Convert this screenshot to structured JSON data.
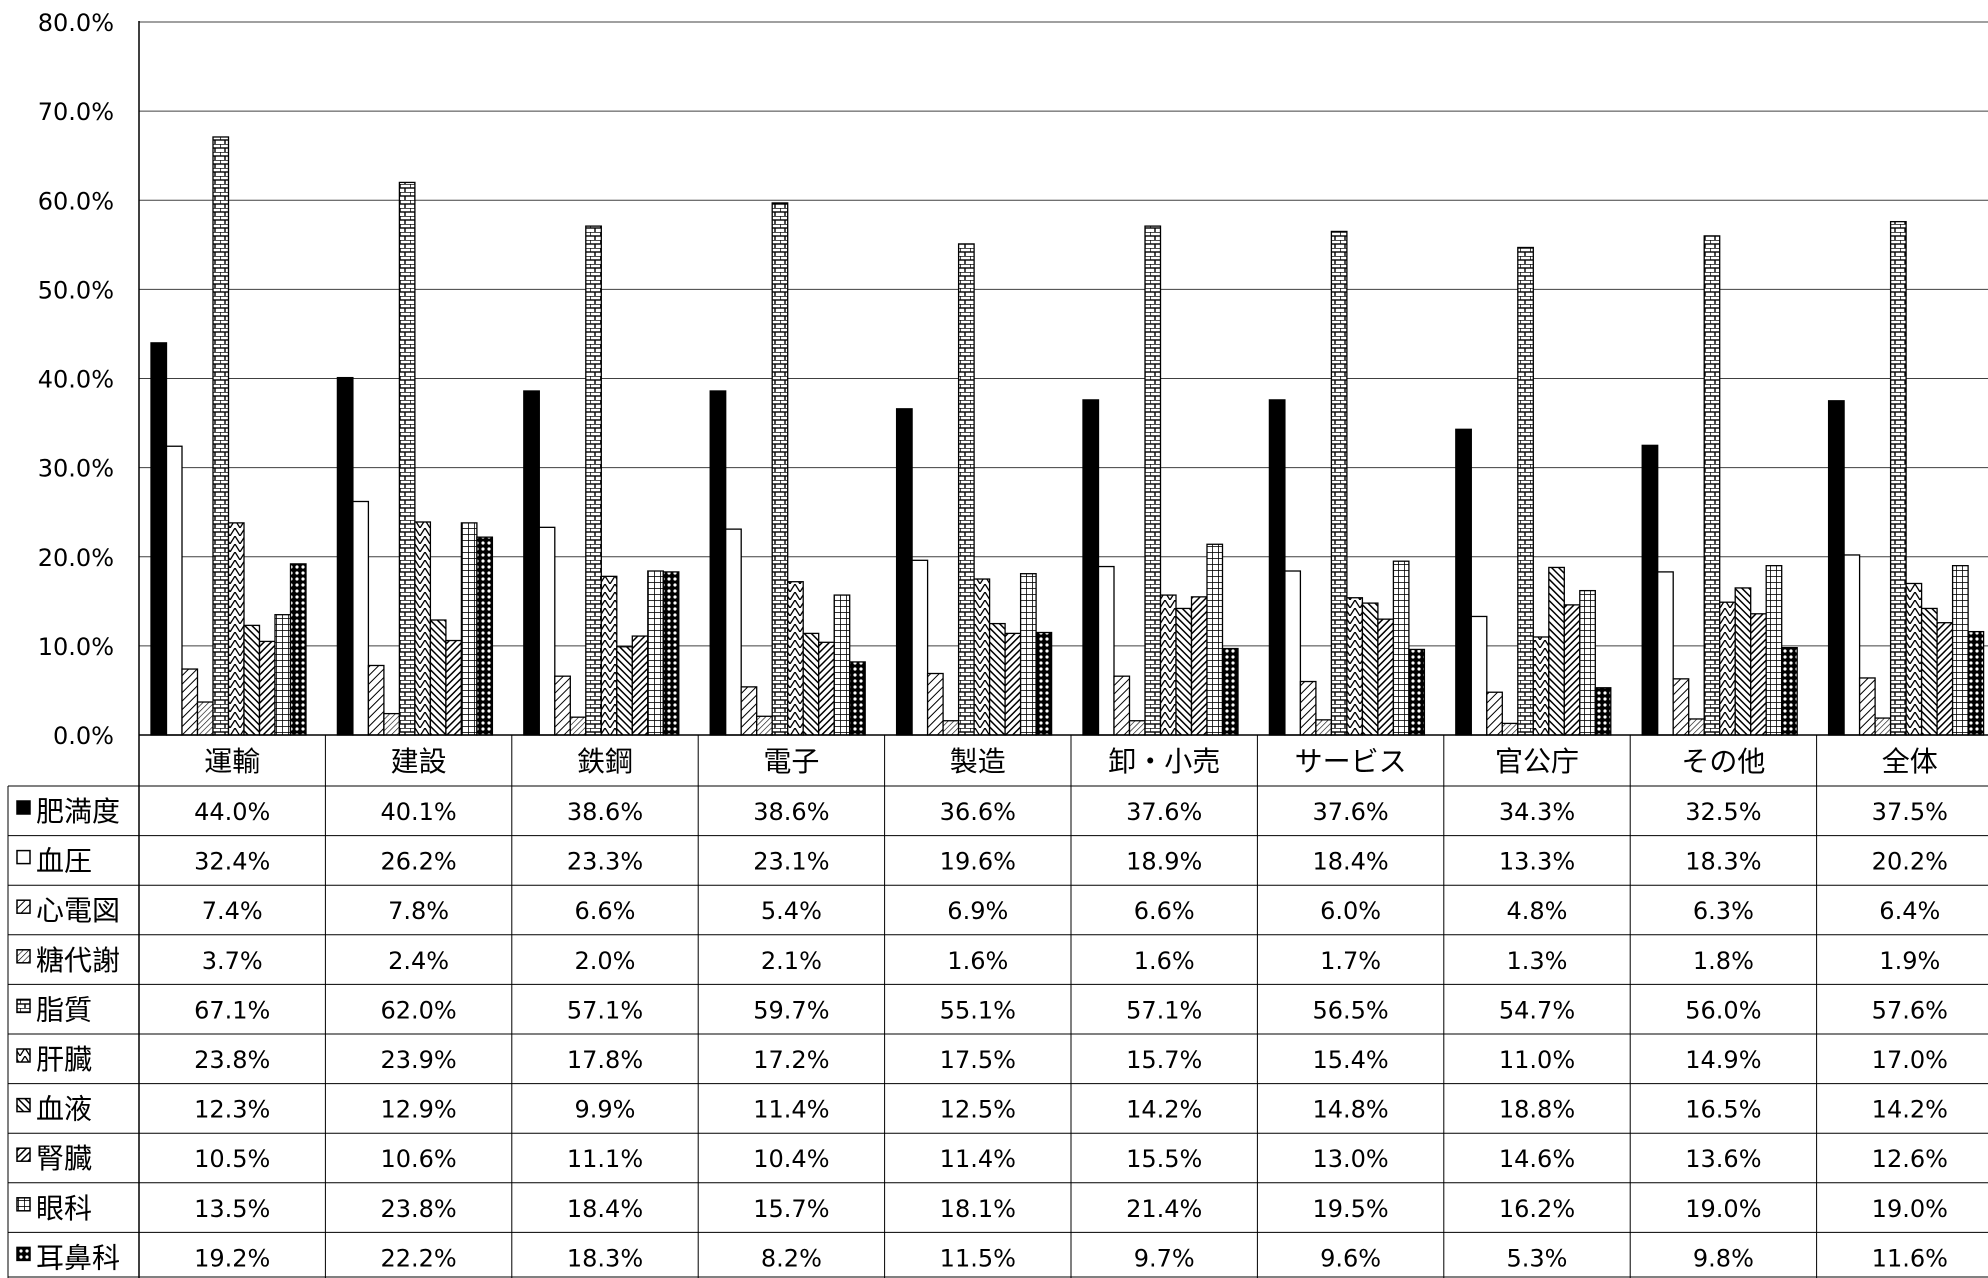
{
  "chart_data": {
    "type": "bar",
    "title": "",
    "xlabel": "",
    "ylabel": "",
    "ylim": [
      0,
      80
    ],
    "yticks": [
      "0.0%",
      "10.0%",
      "20.0%",
      "30.0%",
      "40.0%",
      "50.0%",
      "60.0%",
      "70.0%",
      "80.0%"
    ],
    "grid": true,
    "legend": "data-table-below",
    "categories": [
      "運輸",
      "建設",
      "鉄鋼",
      "電子",
      "製造",
      "卸・小売",
      "サービス",
      "官公庁",
      "その他",
      "全体"
    ],
    "series": [
      {
        "name": "肥満度",
        "pattern": "solid-black",
        "values": [
          44.0,
          40.1,
          38.6,
          38.6,
          36.6,
          37.6,
          37.6,
          34.3,
          32.5,
          37.5
        ],
        "labels": [
          "44.0%",
          "40.1%",
          "38.6%",
          "38.6%",
          "36.6%",
          "37.6%",
          "37.6%",
          "34.3%",
          "32.5%",
          "37.5%"
        ]
      },
      {
        "name": "血圧",
        "pattern": "white",
        "values": [
          32.4,
          26.2,
          23.3,
          23.1,
          19.6,
          18.9,
          18.4,
          13.3,
          18.3,
          20.2
        ],
        "labels": [
          "32.4%",
          "26.2%",
          "23.3%",
          "23.1%",
          "19.6%",
          "18.9%",
          "18.4%",
          "13.3%",
          "18.3%",
          "20.2%"
        ]
      },
      {
        "name": "心電図",
        "pattern": "diagonal-hatch",
        "values": [
          7.4,
          7.8,
          6.6,
          5.4,
          6.9,
          6.6,
          6.0,
          4.8,
          6.3,
          6.4
        ],
        "labels": [
          "7.4%",
          "7.8%",
          "6.6%",
          "5.4%",
          "6.9%",
          "6.6%",
          "6.0%",
          "4.8%",
          "6.3%",
          "6.4%"
        ]
      },
      {
        "name": "糖代謝",
        "pattern": "fine-diagonal",
        "values": [
          3.7,
          2.4,
          2.0,
          2.1,
          1.6,
          1.6,
          1.7,
          1.3,
          1.8,
          1.9
        ],
        "labels": [
          "3.7%",
          "2.4%",
          "2.0%",
          "2.1%",
          "1.6%",
          "1.6%",
          "1.7%",
          "1.3%",
          "1.8%",
          "1.9%"
        ]
      },
      {
        "name": "脂質",
        "pattern": "brick",
        "values": [
          67.1,
          62.0,
          57.1,
          59.7,
          55.1,
          57.1,
          56.5,
          54.7,
          56.0,
          57.6
        ],
        "labels": [
          "67.1%",
          "62.0%",
          "57.1%",
          "59.7%",
          "55.1%",
          "57.1%",
          "56.5%",
          "54.7%",
          "56.0%",
          "57.6%"
        ]
      },
      {
        "name": "肝臓",
        "pattern": "zigzag",
        "values": [
          23.8,
          23.9,
          17.8,
          17.2,
          17.5,
          15.7,
          15.4,
          11.0,
          14.9,
          17.0
        ],
        "labels": [
          "23.8%",
          "23.9%",
          "17.8%",
          "17.2%",
          "17.5%",
          "15.7%",
          "15.4%",
          "11.0%",
          "14.9%",
          "17.0%"
        ]
      },
      {
        "name": "血液",
        "pattern": "dense-diagonal",
        "values": [
          12.3,
          12.9,
          9.9,
          11.4,
          12.5,
          14.2,
          14.8,
          18.8,
          16.5,
          14.2
        ],
        "labels": [
          "12.3%",
          "12.9%",
          "9.9%",
          "11.4%",
          "12.5%",
          "14.2%",
          "14.8%",
          "18.8%",
          "16.5%",
          "14.2%"
        ]
      },
      {
        "name": "腎臓",
        "pattern": "dense-diagonal-2",
        "values": [
          10.5,
          10.6,
          11.1,
          10.4,
          11.4,
          15.5,
          13.0,
          14.6,
          13.6,
          12.6
        ],
        "labels": [
          "10.5%",
          "10.6%",
          "11.1%",
          "10.4%",
          "11.4%",
          "15.5%",
          "13.0%",
          "14.6%",
          "13.6%",
          "12.6%"
        ]
      },
      {
        "name": "眼科",
        "pattern": "grid",
        "values": [
          13.5,
          23.8,
          18.4,
          15.7,
          18.1,
          21.4,
          19.5,
          16.2,
          19.0,
          19.0
        ],
        "labels": [
          "13.5%",
          "23.8%",
          "18.4%",
          "15.7%",
          "18.1%",
          "21.4%",
          "19.5%",
          "16.2%",
          "19.0%",
          "19.0%"
        ]
      },
      {
        "name": "耳鼻科",
        "pattern": "dots",
        "values": [
          19.2,
          22.2,
          18.3,
          8.2,
          11.5,
          9.7,
          9.6,
          5.3,
          9.8,
          11.6
        ],
        "labels": [
          "19.2%",
          "22.2%",
          "18.3%",
          "8.2%",
          "11.5%",
          "9.7%",
          "9.6%",
          "5.3%",
          "9.8%",
          "11.6%"
        ]
      }
    ]
  },
  "colors": {
    "axis": "#000000",
    "grid": "#404040",
    "bar_fill": "#000000",
    "background": "#ffffff"
  }
}
